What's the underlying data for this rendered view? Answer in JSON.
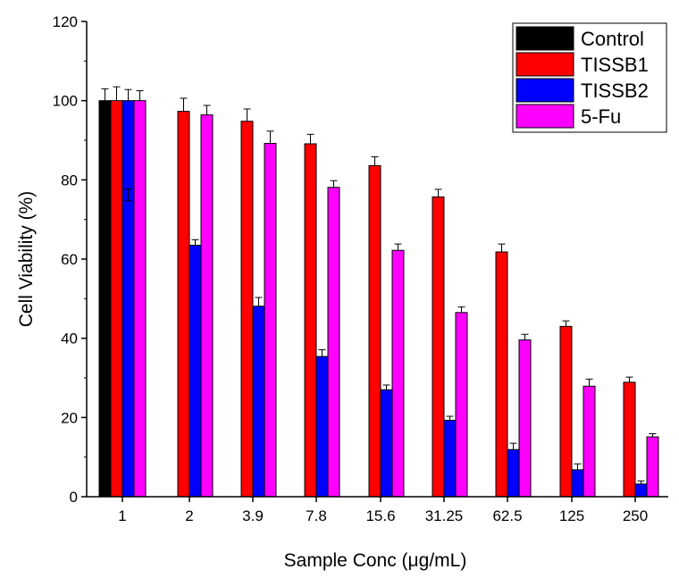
{
  "chart_data": {
    "type": "bar",
    "xlabel": "Sample Conc (μg/mL)",
    "ylabel": "Cell Viability (%)",
    "ylim": [
      0,
      120
    ],
    "yticks": [
      0,
      20,
      40,
      60,
      80,
      100,
      120
    ],
    "grid": false,
    "legend_position": "top-right",
    "categories": [
      "1",
      "2",
      "3.9",
      "7.8",
      "15.6",
      "31.25",
      "62.5",
      "125",
      "250"
    ],
    "series": [
      {
        "name": "Control",
        "color": "#000000",
        "values": [
          100,
          null,
          null,
          null,
          null,
          null,
          null,
          null,
          null
        ],
        "errors": [
          3,
          null,
          null,
          null,
          null,
          null,
          null,
          null,
          null
        ]
      },
      {
        "name": "TISSB1",
        "color": "#ff0000",
        "values": [
          100,
          97.3,
          94.8,
          89.1,
          83.6,
          75.7,
          61.8,
          43.0,
          28.9
        ],
        "errors": [
          3.5,
          3.3,
          3.1,
          2.4,
          2.2,
          1.9,
          2.0,
          1.4,
          1.3
        ]
      },
      {
        "name": "TISSB2",
        "color": "#0000ff",
        "values": [
          100,
          63.5,
          48.1,
          35.4,
          27.0,
          19.3,
          11.9,
          6.8,
          3.2
        ],
        "errors": [
          2.8,
          1.4,
          2.2,
          1.7,
          1.2,
          1.0,
          1.6,
          1.5,
          0.8
        ]
      },
      {
        "name": "5-Fu",
        "color": "#ff00ff",
        "values": [
          100,
          96.4,
          89.2,
          78.1,
          62.2,
          46.5,
          39.6,
          27.9,
          15.1
        ],
        "errors": [
          2.5,
          2.4,
          3.1,
          1.7,
          1.6,
          1.4,
          1.4,
          1.8,
          0.8
        ]
      }
    ],
    "annotation_value": 76.2,
    "annotation_error": 1.5
  }
}
